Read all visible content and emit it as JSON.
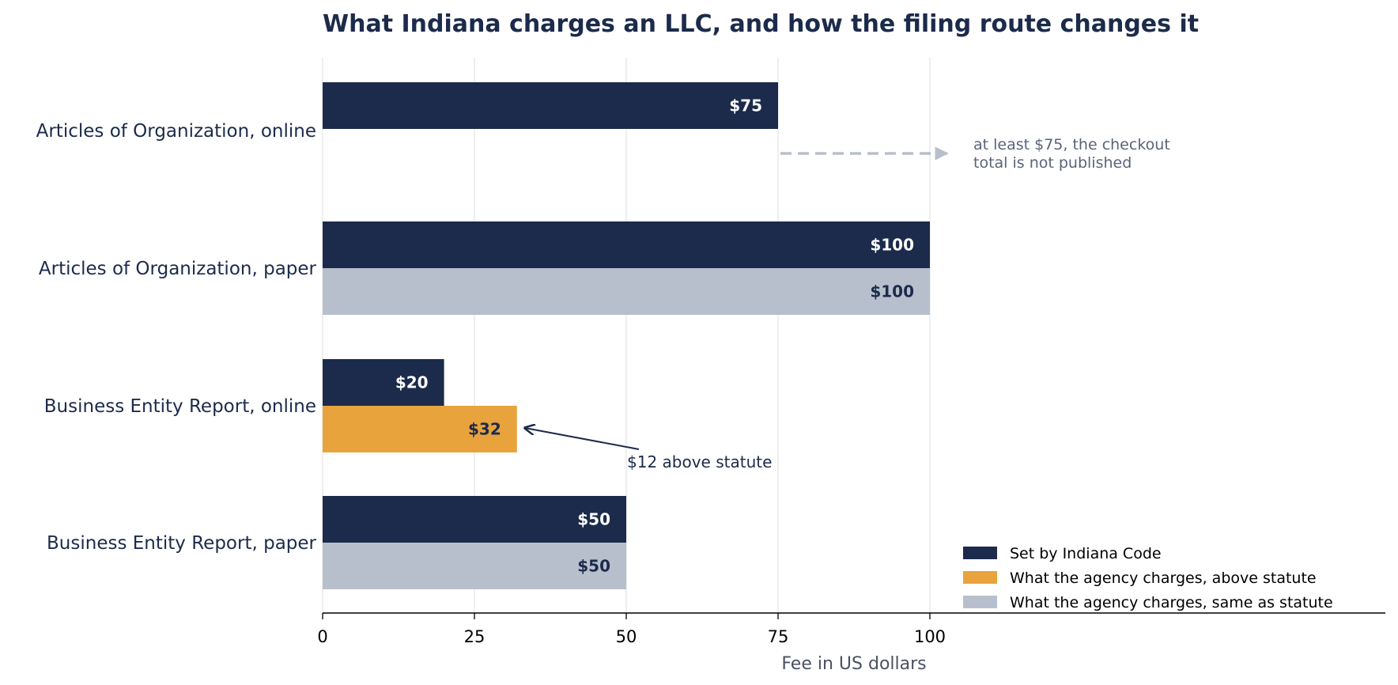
{
  "chart_data": {
    "type": "bar",
    "orientation": "horizontal",
    "title": "What Indiana charges an LLC, and how the filing route changes it",
    "xlabel": "Fee in US dollars",
    "ylabel": "",
    "xlim": [
      0,
      175
    ],
    "xticks": [
      0,
      25,
      50,
      75,
      100
    ],
    "grid": "vertical",
    "categories": [
      "Articles of Organization, online",
      "Articles of Organization, paper",
      "Business Entity Report, online",
      "Business Entity Report, paper"
    ],
    "series": [
      {
        "name": "Set by Indiana Code",
        "values": [
          75,
          100,
          20,
          50
        ],
        "labels": [
          "$75",
          "$100",
          "$20",
          "$50"
        ]
      },
      {
        "name": "What the agency charges",
        "values": [
          null,
          100,
          32,
          50
        ],
        "labels": [
          null,
          "$100",
          "$32",
          "$50"
        ],
        "status": [
          null,
          "same",
          "above",
          "same"
        ]
      }
    ],
    "legend": {
      "position": "bottom-right",
      "entries": [
        {
          "label": "Set by Indiana Code",
          "color": "#1c2b4b"
        },
        {
          "label": "What the agency charges, above statute",
          "color": "#e8a33d"
        },
        {
          "label": "What the agency charges, same as statute",
          "color": "#b8bfcc"
        }
      ]
    },
    "annotations": [
      {
        "text_lines": [
          "at least $75, the checkout",
          "total is not published"
        ],
        "category": "Articles of Organization, online",
        "from_x": 75,
        "to_x": 100,
        "style": "dashed-arrow"
      },
      {
        "text": "$12 above statute",
        "category": "Business Entity Report, online",
        "points_to_x": 32,
        "style": "arrow"
      }
    ],
    "colors": {
      "statute": "#1c2b4b",
      "above": "#e8a33d",
      "same": "#b8bfcc",
      "grid": "#e6e6e6",
      "text": "#1c2b4b",
      "annotation_gray": "#5a6478",
      "arrow_gray": "#b8bfcc"
    }
  }
}
